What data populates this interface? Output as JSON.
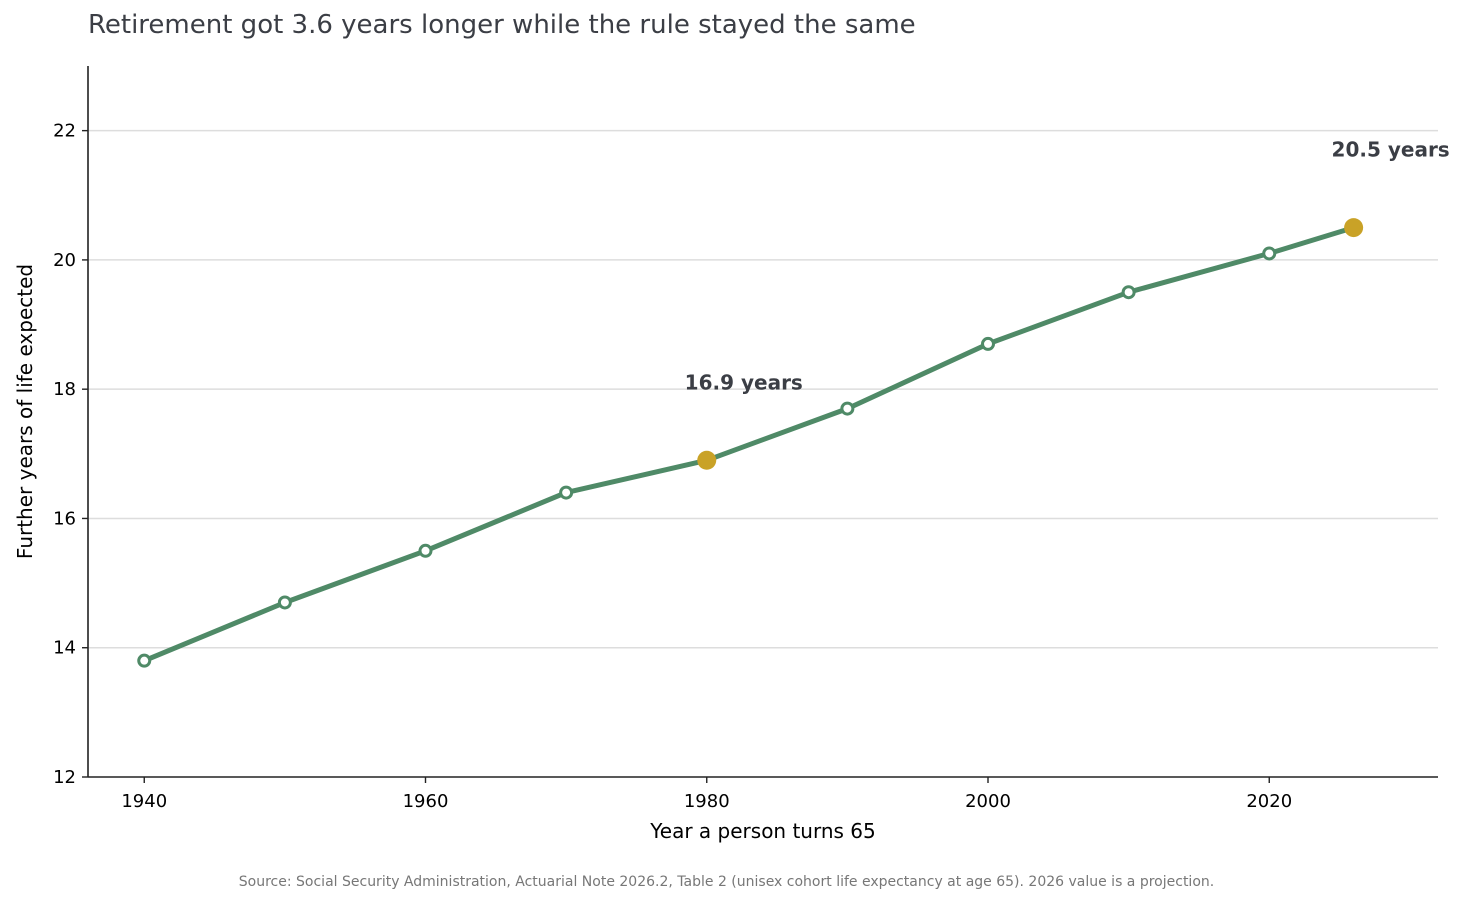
{
  "chart_data": {
    "type": "line",
    "title": "Retirement got 3.6 years longer while the rule stayed the same",
    "xlabel": "Year a person turns 65",
    "ylabel": "Further years of life expected",
    "xlim": [
      1936,
      2032
    ],
    "ylim": [
      12,
      23
    ],
    "xticks": [
      1940,
      1960,
      1980,
      2000,
      2020
    ],
    "yticks": [
      12,
      14,
      16,
      18,
      20,
      22
    ],
    "grid": "horizontal",
    "series": [
      {
        "x": [
          1940,
          1950,
          1960,
          1970,
          1980,
          1990,
          2000,
          2010,
          2020,
          2026
        ],
        "y": [
          13.8,
          14.7,
          15.5,
          16.4,
          16.9,
          17.7,
          18.7,
          19.5,
          20.1,
          20.5
        ]
      }
    ],
    "highlights": [
      {
        "x": 1980,
        "y": 16.9,
        "label": "16.9 years"
      },
      {
        "x": 2026,
        "y": 20.5,
        "label": "20.5 years"
      }
    ],
    "source": "Source: Social Security Administration, Actuarial Note 2026.2, Table 2 (unisex cohort life expectancy at age 65). 2026 value is a projection.",
    "colors": {
      "line": "#4f8a67",
      "highlight": "#c9a227",
      "marker_fill": "#ffffff",
      "grid": "#dddddd",
      "axis": "#222222",
      "title": "#3b3e45",
      "label_text": "#3b3e45",
      "source_text": "#777777"
    }
  }
}
